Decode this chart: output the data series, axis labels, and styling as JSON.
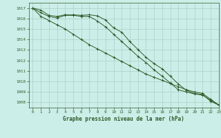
{
  "title": "Graphe pression niveau de la mer (hPa)",
  "background_color": "#cceee8",
  "grid_color": "#aacfc8",
  "line_color": "#2d5a27",
  "xlim": [
    -0.5,
    23
  ],
  "ylim": [
    1007.5,
    1017.5
  ],
  "yticks": [
    1008,
    1009,
    1010,
    1011,
    1012,
    1013,
    1014,
    1015,
    1016,
    1017
  ],
  "xticks": [
    0,
    1,
    2,
    3,
    4,
    5,
    6,
    7,
    8,
    9,
    10,
    11,
    12,
    13,
    14,
    15,
    16,
    17,
    18,
    19,
    20,
    21,
    22,
    23
  ],
  "series1": [
    1017.0,
    1016.8,
    1016.3,
    1016.2,
    1016.35,
    1016.35,
    1016.3,
    1016.35,
    1016.25,
    1015.85,
    1015.1,
    1014.7,
    1013.8,
    1013.05,
    1012.3,
    1011.7,
    1011.2,
    1010.5,
    1009.75,
    1009.15,
    1008.85,
    1008.75,
    1008.1,
    1007.75
  ],
  "series2": [
    1017.0,
    1016.55,
    1016.2,
    1016.05,
    1016.3,
    1016.3,
    1016.2,
    1016.2,
    1015.75,
    1015.2,
    1014.5,
    1013.8,
    1013.1,
    1012.4,
    1011.8,
    1011.1,
    1010.5,
    1009.85,
    1009.2,
    1009.0,
    1008.8,
    1008.7,
    1008.2,
    1007.75
  ],
  "series3": [
    1017.0,
    1016.2,
    1015.8,
    1015.4,
    1015.0,
    1014.5,
    1014.0,
    1013.5,
    1013.1,
    1012.7,
    1012.3,
    1011.9,
    1011.5,
    1011.1,
    1010.7,
    1010.4,
    1010.1,
    1009.8,
    1009.5,
    1009.2,
    1009.0,
    1008.85,
    1008.3,
    1007.75
  ]
}
